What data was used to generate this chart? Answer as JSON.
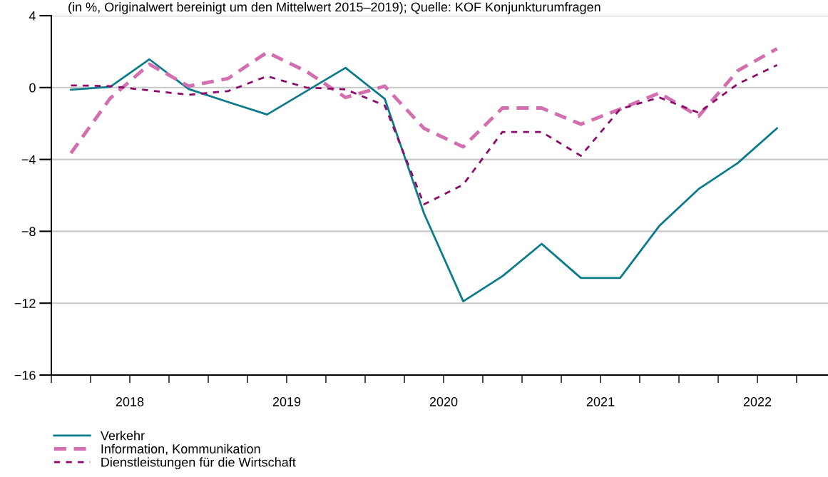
{
  "chart_data": {
    "type": "line",
    "subtitle": "(in %, Originalwert bereinigt um den Mittelwert 2015–2019); Quelle: KOF Konjunkturumfragen",
    "x": [
      2018.125,
      2018.375,
      2018.625,
      2018.875,
      2019.125,
      2019.375,
      2019.625,
      2019.875,
      2020.125,
      2020.375,
      2020.625,
      2020.875,
      2021.125,
      2021.375,
      2021.625,
      2021.875,
      2022.125,
      2022.375,
      2022.625
    ],
    "series": [
      {
        "name": "Verkehr",
        "color": "#0b7b8b",
        "line_style": "solid",
        "values": [
          -0.12,
          0.04,
          1.57,
          -0.08,
          -0.8,
          -1.5,
          -0.2,
          1.1,
          -0.63,
          -7.0,
          -11.9,
          -10.5,
          -8.7,
          -10.6,
          -10.6,
          -7.7,
          -5.65,
          -4.2,
          -2.27
        ]
      },
      {
        "name": "Information, Kommunikation",
        "color": "#d36fb0",
        "line_style": "dashed",
        "values": [
          -3.65,
          -0.6,
          1.3,
          0.08,
          0.5,
          1.96,
          0.9,
          -0.55,
          0.08,
          -2.27,
          -3.3,
          -1.14,
          -1.14,
          -2.04,
          -1.2,
          -0.3,
          -1.6,
          0.94,
          2.16
        ]
      },
      {
        "name": "Dienstleistungen für die Wirtschaft",
        "color": "#8b0a6a",
        "line_style": "dotted",
        "values": [
          0.12,
          0.08,
          -0.16,
          -0.4,
          -0.2,
          0.63,
          0.0,
          -0.1,
          -1.0,
          -6.5,
          -5.4,
          -2.47,
          -2.47,
          -3.8,
          -1.2,
          -0.55,
          -1.4,
          0.2,
          1.25
        ]
      }
    ],
    "xlim": [
      2018,
      2022.95
    ],
    "xticks": [
      {
        "value": 2018,
        "label": null
      },
      {
        "value": 2018.25,
        "label": null
      },
      {
        "value": 2018.5,
        "label": "2018"
      },
      {
        "value": 2018.75,
        "label": null
      },
      {
        "value": 2019,
        "label": null
      },
      {
        "value": 2019.25,
        "label": null
      },
      {
        "value": 2019.5,
        "label": "2019"
      },
      {
        "value": 2019.75,
        "label": null
      },
      {
        "value": 2020,
        "label": null
      },
      {
        "value": 2020.25,
        "label": null
      },
      {
        "value": 2020.5,
        "label": "2020"
      },
      {
        "value": 2020.75,
        "label": null
      },
      {
        "value": 2021,
        "label": null
      },
      {
        "value": 2021.25,
        "label": null
      },
      {
        "value": 2021.5,
        "label": "2021"
      },
      {
        "value": 2021.75,
        "label": null
      },
      {
        "value": 2022,
        "label": null
      },
      {
        "value": 2022.25,
        "label": null
      },
      {
        "value": 2022.5,
        "label": "2022"
      },
      {
        "value": 2022.75,
        "label": null
      }
    ],
    "ylim": [
      -16,
      4
    ],
    "yticks": [
      -16,
      -12,
      -8,
      -4,
      0,
      4
    ],
    "grid": "y",
    "legend": "bottom left"
  }
}
